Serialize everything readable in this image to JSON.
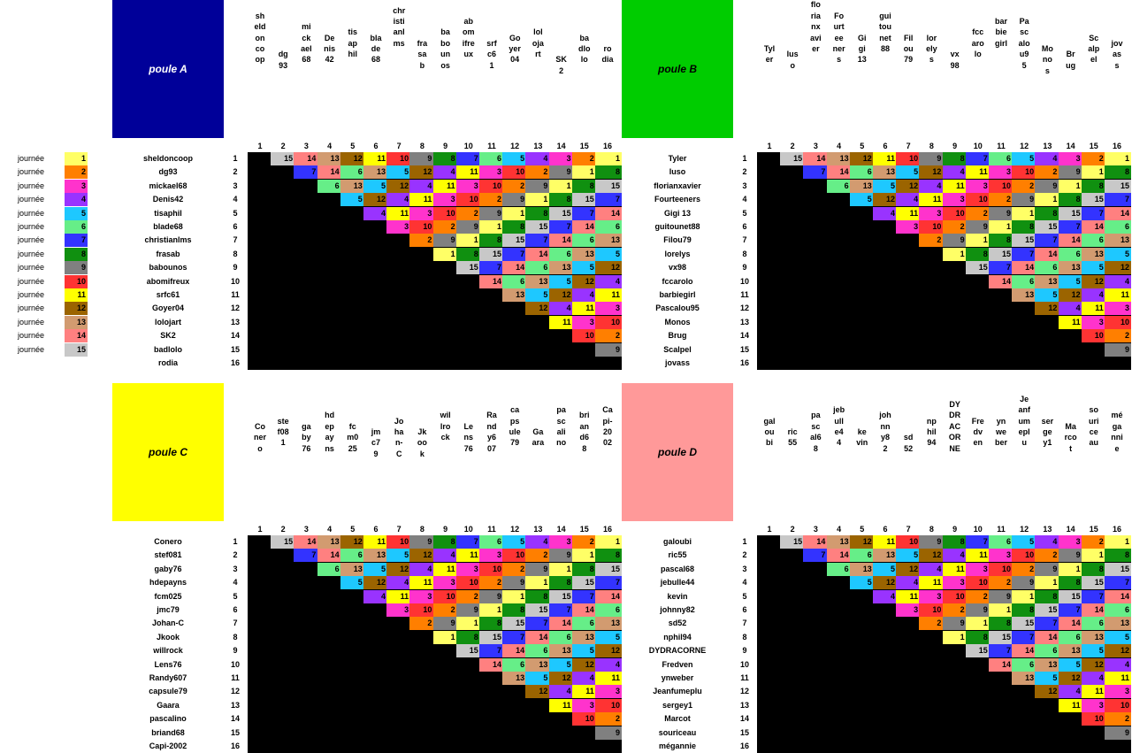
{
  "legend": {
    "label": "journée",
    "numbers": [
      "1",
      "2",
      "3",
      "4",
      "5",
      "6",
      "7",
      "8",
      "9",
      "10",
      "11",
      "12",
      "13",
      "14",
      "15"
    ]
  },
  "day_colors": {
    "1": "#ffff66",
    "2": "#ff7f00",
    "3": "#ff33cc",
    "4": "#9933ff",
    "5": "#1ec8ff",
    "6": "#66ee88",
    "7": "#3333ff",
    "8": "#109010",
    "9": "#808080",
    "10": "#ff3333",
    "11": "#ffff00",
    "12": "#9b6400",
    "13": "#d29b70",
    "14": "#ff8080",
    "15": "#c8c8c8"
  },
  "column_numbers": [
    "1",
    "2",
    "3",
    "4",
    "5",
    "6",
    "7",
    "8",
    "9",
    "10",
    "11",
    "12",
    "13",
    "14",
    "15",
    "16"
  ],
  "row_numbers": [
    "1",
    "2",
    "3",
    "4",
    "5",
    "6",
    "7",
    "8",
    "9",
    "10",
    "11",
    "12",
    "13",
    "14",
    "15",
    "16"
  ],
  "schedule": [
    [
      null,
      "15",
      "14",
      "13",
      "12",
      "11",
      "10",
      "9",
      "8",
      "7",
      "6",
      "5",
      "4",
      "3",
      "2",
      "1"
    ],
    [
      "7",
      "14",
      "6",
      "13",
      "5",
      "12",
      "4",
      "11",
      "3",
      "10",
      "2",
      "9",
      "1",
      "8"
    ],
    [
      "6",
      "13",
      "5",
      "12",
      "4",
      "11",
      "3",
      "10",
      "2",
      "9",
      "1",
      "8",
      "15"
    ],
    [
      "5",
      "12",
      "4",
      "11",
      "3",
      "10",
      "2",
      "9",
      "1",
      "8",
      "15",
      "7"
    ],
    [
      "4",
      "11",
      "3",
      "10",
      "2",
      "9",
      "1",
      "8",
      "15",
      "7",
      "14"
    ],
    [
      "3",
      "10",
      "2",
      "9",
      "1",
      "8",
      "15",
      "7",
      "14",
      "6"
    ],
    [
      "2",
      "9",
      "1",
      "8",
      "15",
      "7",
      "14",
      "6",
      "13"
    ],
    [
      "1",
      "8",
      "15",
      "7",
      "14",
      "6",
      "13",
      "5"
    ],
    [
      "15",
      "7",
      "14",
      "6",
      "13",
      "5",
      "12"
    ],
    [
      "14",
      "6",
      "13",
      "5",
      "12",
      "4"
    ],
    [
      "13",
      "5",
      "12",
      "4",
      "11"
    ],
    [
      "12",
      "4",
      "11",
      "3"
    ],
    [
      "11",
      "3",
      "10"
    ],
    [
      "10",
      "2"
    ],
    [
      "9"
    ]
  ],
  "poules": [
    {
      "title": "poule A",
      "color": "#000099",
      "text_color": "#ffffff",
      "players": [
        "sheldoncoop",
        "dg93",
        "mickael68",
        "Denis42",
        "tisaphil",
        "blade68",
        "christianlms",
        "frasab",
        "babounos",
        "abomifreux",
        "srfc61",
        "Goyer04",
        "lolojart",
        "SK2",
        "badlolo",
        "rodia"
      ]
    },
    {
      "title": "poule B",
      "color": "#00cc00",
      "text_color": "#000000",
      "players": [
        "Tyler",
        "luso",
        "florianxavier",
        "Fourteeners",
        "Gigi 13",
        "guitounet88",
        "Filou79",
        "lorelys",
        "vx98",
        "fccarolo",
        "barbiegirl",
        "Pascalou95",
        "Monos",
        "Brug",
        "Scalpel",
        "jovass"
      ]
    },
    {
      "title": "poule C",
      "color": "#ffff00",
      "text_color": "#000000",
      "players": [
        "Conero",
        "stef081",
        "gaby76",
        "hdepayns",
        "fcm025",
        "jmc79",
        "Johan-C",
        "Jkook",
        "willrock",
        "Lens76",
        "Randy607",
        "capsule79",
        "Gaara",
        "pascalino",
        "briand68",
        "Capi-2002"
      ]
    },
    {
      "title": "poule D",
      "color": "#ff9999",
      "text_color": "#000000",
      "players": [
        "galoubi",
        "ric55",
        "pascal68",
        "jebulle44",
        "kevin",
        "johnny82",
        "sd52",
        "nphil94",
        "DYDRACORNE",
        "Fredven",
        "ynweber",
        "Jeanfumeplu",
        "sergey1",
        "Marcot",
        "souriceau",
        "mégannie"
      ]
    }
  ]
}
